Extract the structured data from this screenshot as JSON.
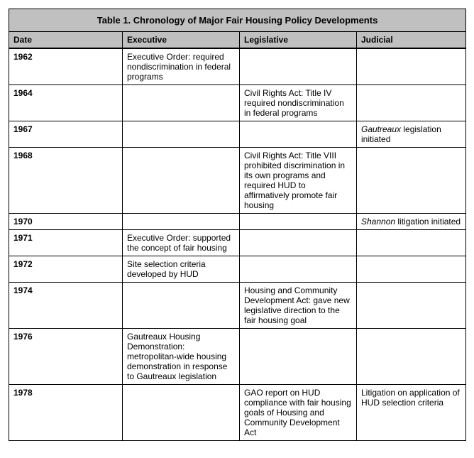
{
  "title": "Table 1. Chronology of Major Fair Housing Policy Developments",
  "columns": {
    "date": "Date",
    "executive": "Executive",
    "legislative": "Legislative",
    "judicial": "Judicial"
  },
  "rows": {
    "r1962": {
      "date": "1962",
      "executive": "Executive Order: required nondiscrimination in federal programs",
      "legislative": "",
      "judicial": ""
    },
    "r1964": {
      "date": "1964",
      "executive": "",
      "legislative": "Civil Rights Act: Title IV required nondiscrimination in federal programs",
      "judicial": ""
    },
    "r1967": {
      "date": "1967",
      "executive": "",
      "legislative": "",
      "judicial_italic": "Gautreaux",
      "judicial_rest": " legislation initiated"
    },
    "r1968": {
      "date": "1968",
      "executive": "",
      "legislative": "Civil Rights Act: Title VIII prohibited discrimination in its own programs and required HUD to affirmatively promote fair housing",
      "judicial": ""
    },
    "r1970": {
      "date": "1970",
      "executive": "",
      "legislative": "",
      "judicial_italic": "Shannon",
      "judicial_rest": " litigation initiated"
    },
    "r1971": {
      "date": "1971",
      "executive": "Executive Order: supported the concept of fair housing",
      "legislative": "",
      "judicial": ""
    },
    "r1972": {
      "date": "1972",
      "executive": "Site selection criteria developed by HUD",
      "legislative": "",
      "judicial": ""
    },
    "r1974": {
      "date": "1974",
      "executive": "",
      "legislative": "Housing and Community Development Act: gave new legislative direction to the fair housing goal",
      "judicial": ""
    },
    "r1976": {
      "date": "1976",
      "executive": "Gautreaux Housing Demonstration: metropolitan-wide housing demonstration in response to Gautreaux legislation",
      "legislative": "",
      "judicial": ""
    },
    "r1978": {
      "date": "1978",
      "executive": "",
      "legislative": "GAO report on HUD compliance with fair housing goals of Housing and Community Development Act",
      "judicial": "Litigation on application of HUD selection criteria"
    }
  }
}
